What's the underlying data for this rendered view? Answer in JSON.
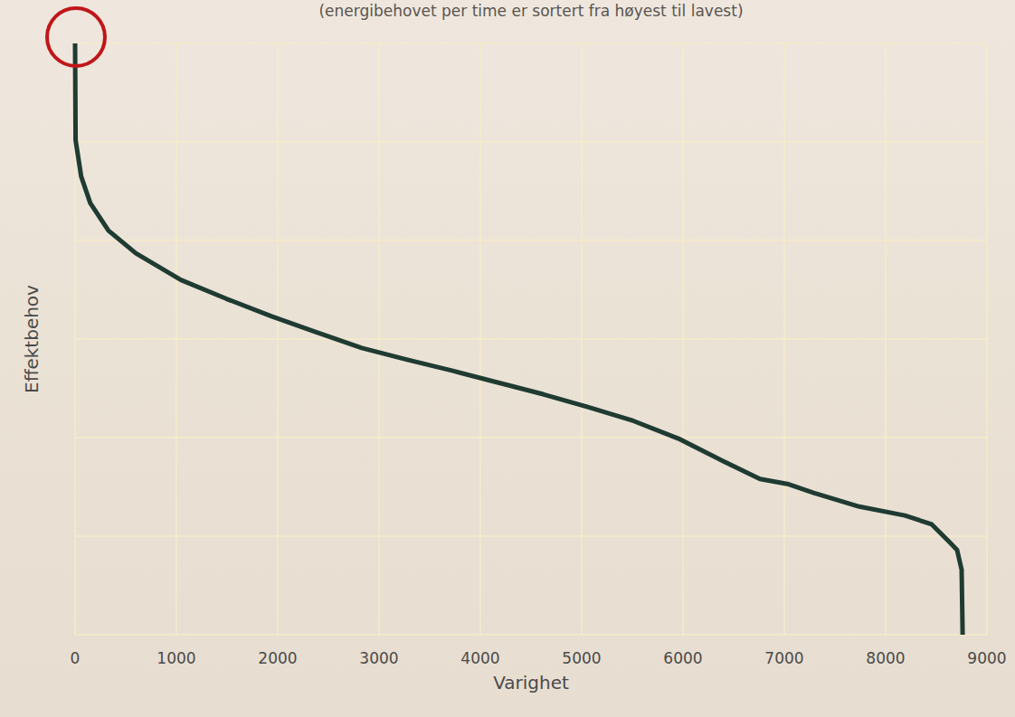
{
  "chart_data": {
    "type": "line",
    "subtitle": "(energibehovet per time er sortert fra høyest til lavest)",
    "x_label": "Varighet",
    "y_label": "Effektbehov",
    "x": [
      0,
      5,
      60,
      150,
      330,
      600,
      1045,
      1490,
      1940,
      2380,
      2830,
      3280,
      3720,
      4170,
      4620,
      5060,
      5510,
      5955,
      6400,
      6760,
      7030,
      7290,
      7740,
      8190,
      8455,
      8630,
      8705,
      8750,
      8760
    ],
    "values": [
      6.0,
      5.02,
      4.65,
      4.38,
      4.1,
      3.87,
      3.6,
      3.41,
      3.23,
      3.07,
      2.91,
      2.79,
      2.68,
      2.56,
      2.44,
      2.31,
      2.17,
      1.99,
      1.76,
      1.58,
      1.53,
      1.44,
      1.3,
      1.21,
      1.12,
      0.94,
      0.86,
      0.66,
      0.0
    ],
    "color": "#1f3b32",
    "xlim": [
      0,
      9000
    ],
    "xticks": [
      0,
      1000,
      2000,
      3000,
      4000,
      5000,
      6000,
      7000,
      8000,
      9000
    ],
    "ylim": [
      0,
      6
    ],
    "yticks": [
      0,
      1,
      2,
      3,
      4,
      5,
      6
    ],
    "grid": true,
    "tick_labels": "x"
  }
}
